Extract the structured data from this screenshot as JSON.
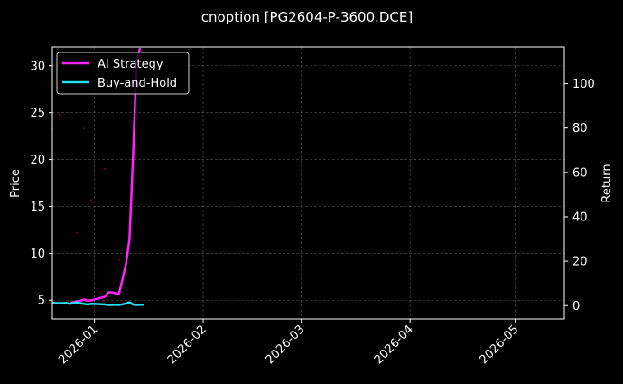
{
  "chart_data": {
    "type": "line",
    "title": "cnoption [PG2604-P-3600.DCE]",
    "xlabel": "",
    "ylabel_left": "Price",
    "ylabel_right": "Return",
    "x_ticks": [
      "2026-01",
      "2026-02",
      "2026-03",
      "2026-04",
      "2026-05"
    ],
    "x_range": [
      "2025-12-20",
      "2026-05-15"
    ],
    "ylim_left": [
      3,
      32
    ],
    "ylim_right": [
      -6,
      116.5
    ],
    "y_ticks_left": [
      5,
      10,
      15,
      20,
      25,
      30
    ],
    "y_ticks_right": [
      0,
      20,
      40,
      60,
      80,
      100
    ],
    "grid": true,
    "legend_position": "top-left",
    "background": "#000000",
    "series": [
      {
        "name": "AI Strategy",
        "axis": "right",
        "color": "#ff22ff",
        "x": [
          "2025-12-25",
          "2025-12-26",
          "2025-12-27",
          "2025-12-28",
          "2025-12-29",
          "2025-12-30",
          "2025-12-31",
          "2026-01-01",
          "2026-01-02",
          "2026-01-03",
          "2026-01-04",
          "2026-01-05",
          "2026-01-06",
          "2026-01-07",
          "2026-01-08",
          "2026-01-09",
          "2026-01-10",
          "2026-01-11",
          "2026-01-12",
          "2026-01-13",
          "2026-01-14"
        ],
        "values": [
          1.2,
          1.6,
          1.8,
          2.2,
          2.8,
          2.2,
          2.4,
          2.8,
          3.2,
          3.6,
          4.0,
          6.0,
          6.0,
          5.5,
          5.5,
          12,
          19,
          30,
          67,
          110,
          116
        ]
      },
      {
        "name": "Buy-and-Hold",
        "axis": "right",
        "color": "#22e0f0",
        "x": [
          "2025-12-20",
          "2025-12-22",
          "2025-12-24",
          "2025-12-25",
          "2025-12-26",
          "2025-12-27",
          "2025-12-28",
          "2025-12-29",
          "2025-12-30",
          "2025-12-31",
          "2026-01-02",
          "2026-01-04",
          "2026-01-05",
          "2026-01-06",
          "2026-01-07",
          "2026-01-08",
          "2026-01-09",
          "2026-01-10",
          "2026-01-11",
          "2026-01-12",
          "2026-01-13",
          "2026-01-14",
          "2026-01-15"
        ],
        "values": [
          1.2,
          1.1,
          1.2,
          0.8,
          1.2,
          1.5,
          1.0,
          0.8,
          0.5,
          0.8,
          0.7,
          0.5,
          0.3,
          0.3,
          0.4,
          0.3,
          0.6,
          1.0,
          1.5,
          0.5,
          0.3,
          0.4,
          0.4
        ]
      },
      {
        "name": "",
        "axis": "left",
        "style": "faint-dots",
        "color": "#aa0022",
        "x": [
          "2025-12-20",
          "2025-12-22",
          "2025-12-27",
          "2025-12-29",
          "2025-12-31",
          "2026-01-04",
          "2026-01-08"
        ],
        "values": [
          23.2,
          24.8,
          12.2,
          23.3,
          15.7,
          19.0,
          9.3
        ]
      }
    ]
  }
}
